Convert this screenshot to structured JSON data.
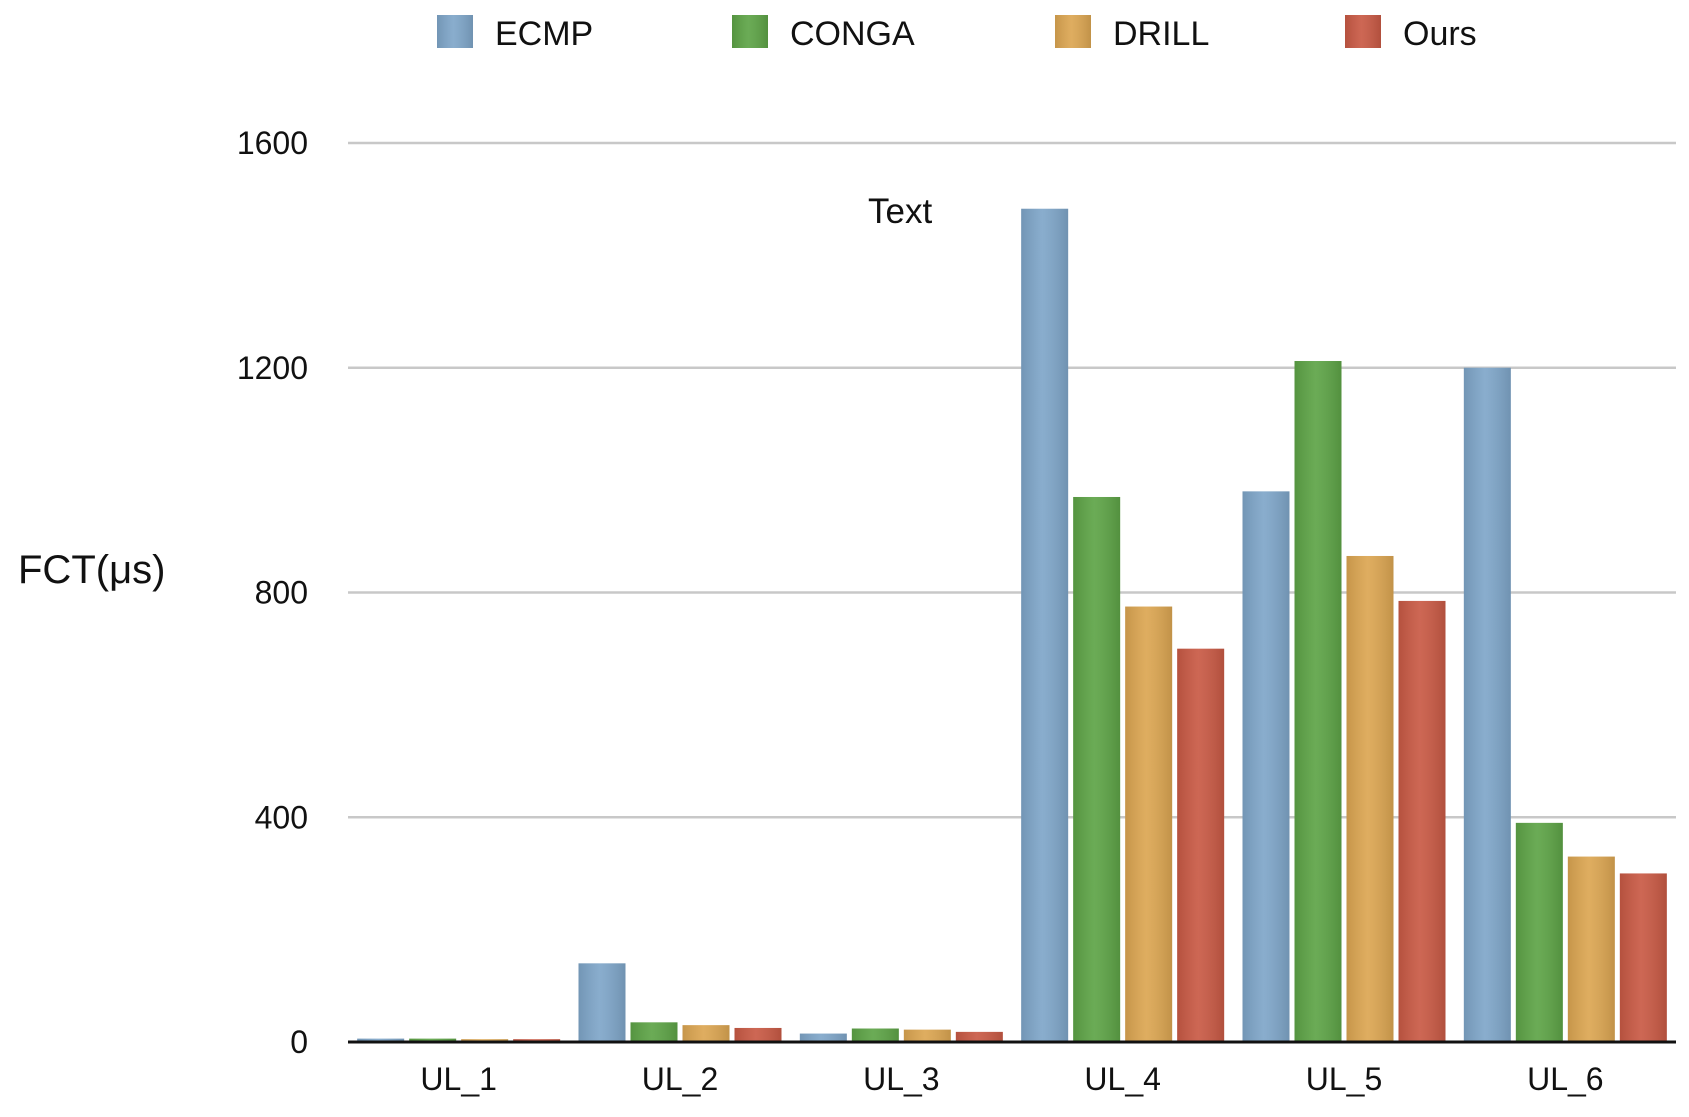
{
  "chart_data": {
    "type": "bar",
    "title": "",
    "xlabel": "",
    "ylabel": "FCT(μs)",
    "categories": [
      "UL_1",
      "UL_2",
      "UL_3",
      "UL_4",
      "UL_5",
      "UL_6"
    ],
    "series": [
      {
        "name": "ECMP",
        "color": "#7fa6c9",
        "values": [
          6,
          140,
          15,
          1483,
          980,
          1200
        ]
      },
      {
        "name": "CONGA",
        "color": "#5ea447",
        "values": [
          6,
          35,
          24,
          970,
          1212,
          390
        ]
      },
      {
        "name": "DRILL",
        "color": "#dca652",
        "values": [
          5,
          30,
          22,
          775,
          865,
          330
        ]
      },
      {
        "name": "Ours",
        "color": "#c95a45",
        "values": [
          5,
          25,
          18,
          700,
          785,
          300
        ]
      }
    ],
    "ylim": [
      0,
      1600
    ],
    "yticks": [
      "0",
      "400",
      "800",
      "1200",
      "1600"
    ],
    "ytick_values": [
      0,
      400,
      800,
      1200,
      1600
    ],
    "grid": true,
    "legend_position": "top",
    "annotations": [
      {
        "text": "Text"
      }
    ]
  }
}
